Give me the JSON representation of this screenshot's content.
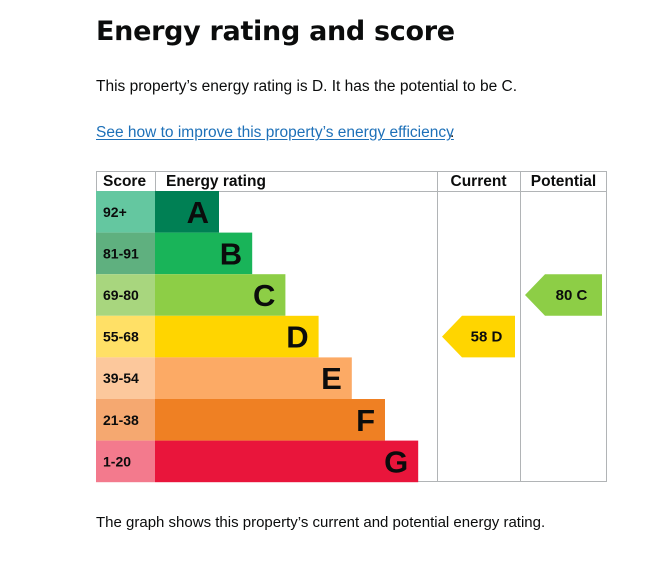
{
  "page": {
    "heading": "Energy rating and score",
    "summary": "This property’s energy rating is D. It has the potential to be C.",
    "improve_link": "See how to improve this property’s energy efficiency",
    "improve_link_suffix": ".",
    "caption": "The graph shows this property’s current and potential energy rating."
  },
  "chart_data": {
    "type": "bar",
    "columns": [
      "Score",
      "Energy rating",
      "Current",
      "Potential"
    ],
    "bands": [
      {
        "score": "92+",
        "letter": "A",
        "bar_color": "#008054",
        "score_color": "#64c7a0"
      },
      {
        "score": "81-91",
        "letter": "B",
        "bar_color": "#19b459",
        "score_color": "#5fb07f"
      },
      {
        "score": "69-80",
        "letter": "C",
        "bar_color": "#8dce46",
        "score_color": "#a8d67e"
      },
      {
        "score": "55-68",
        "letter": "D",
        "bar_color": "#ffd500",
        "score_color": "#ffe066"
      },
      {
        "score": "39-54",
        "letter": "E",
        "bar_color": "#fcaa65",
        "score_color": "#fcc89c"
      },
      {
        "score": "21-38",
        "letter": "F",
        "bar_color": "#ef8023",
        "score_color": "#f5a870"
      },
      {
        "score": "1-20",
        "letter": "G",
        "bar_color": "#e9153b",
        "score_color": "#f37a8d"
      }
    ],
    "current": {
      "value": 58,
      "letter": "D",
      "label": "58  D",
      "color": "#ffd500"
    },
    "potential": {
      "value": 80,
      "letter": "C",
      "label": "80  C",
      "color": "#8dce46"
    }
  }
}
